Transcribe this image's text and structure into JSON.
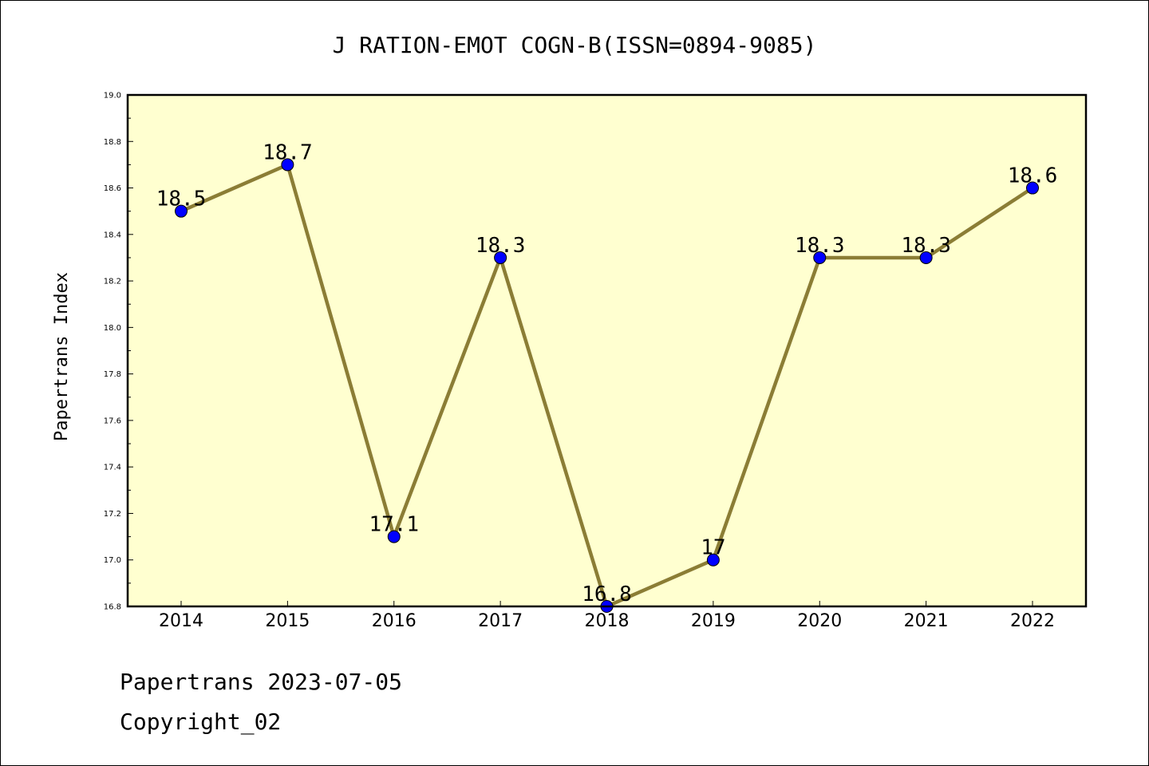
{
  "chart_data": {
    "type": "line",
    "title": "J RATION-EMOT COGN-B(ISSN=0894-9085)",
    "xlabel": "",
    "ylabel": "Papertrans Index",
    "categories": [
      "2014",
      "2015",
      "2016",
      "2017",
      "2018",
      "2019",
      "2020",
      "2021",
      "2022"
    ],
    "series": [
      {
        "values": [
          18.5,
          18.7,
          17.1,
          18.3,
          16.8,
          17.0,
          18.3,
          18.3,
          18.6
        ],
        "labels": [
          "18.5",
          "18.7",
          "17.1",
          "18.3",
          "16.8",
          "17",
          "18.3",
          "18.3",
          "18.6"
        ]
      }
    ],
    "yticks": [
      "16.8",
      "17.0",
      "17.2",
      "17.4",
      "17.6",
      "17.8",
      "18.0",
      "18.2",
      "18.4",
      "18.6",
      "18.8",
      "19.0"
    ],
    "ylim": [
      16.8,
      19.0
    ],
    "grid": false,
    "colors": {
      "plot_background": "#ffffd0",
      "line": "#8b7d35",
      "marker": "#0000ff"
    }
  },
  "footer": {
    "line1": "Papertrans 2023-07-05",
    "line2": "Copyright_02"
  }
}
